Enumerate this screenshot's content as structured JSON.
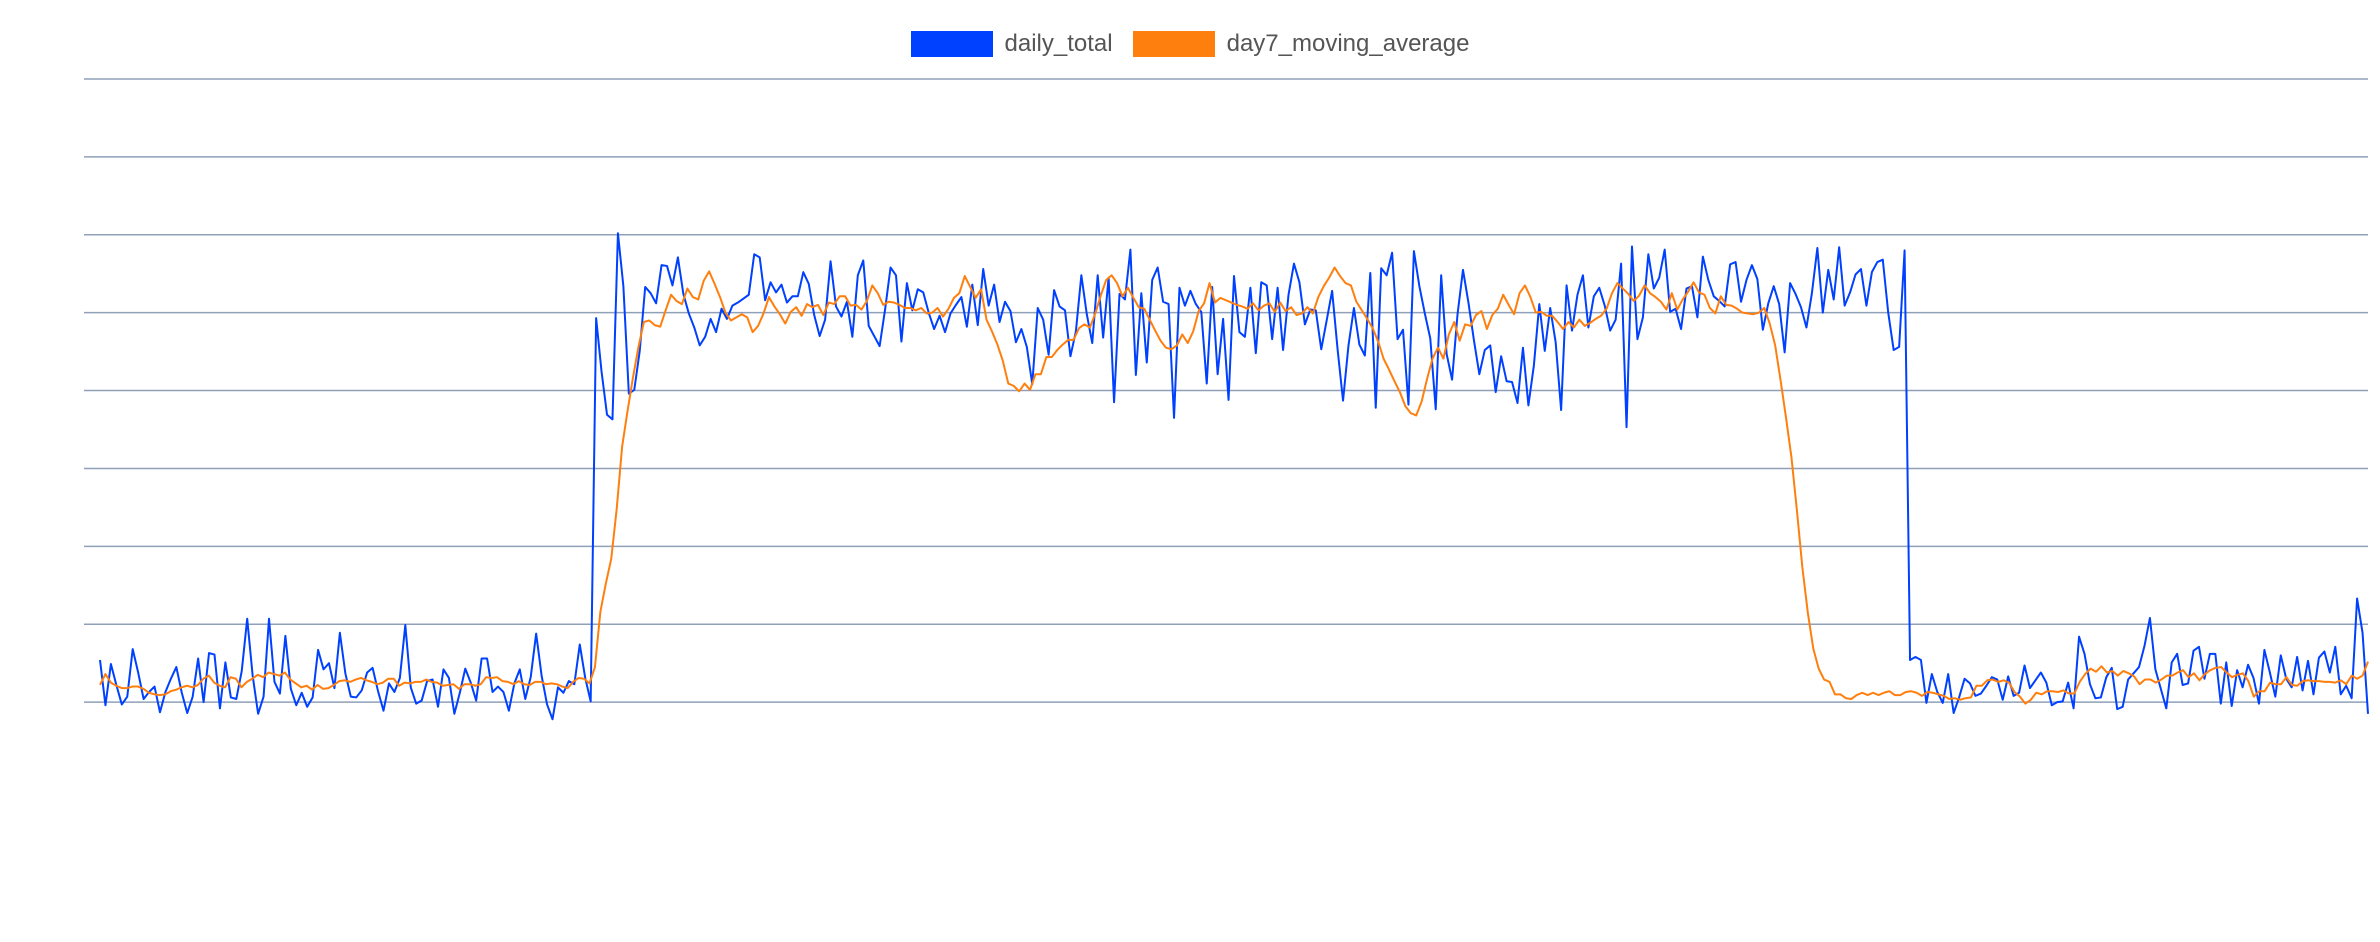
{
  "chart_data": {
    "type": "line",
    "title": "",
    "xlabel": "",
    "ylabel": "",
    "ylim": [
      0,
      9
    ],
    "grid": true,
    "legend_position": "top-center",
    "tick_labels_visible": false,
    "series": [
      {
        "name": "daily_total",
        "color": "#0040ff",
        "values": [
          1.54,
          0.96,
          1.49,
          1.22,
          0.97,
          1.07,
          1.68,
          1.38,
          1.04,
          1.13,
          1.2,
          0.87,
          1.13,
          1.3,
          1.45,
          1.12,
          0.86,
          1.07,
          1.56,
          1.0,
          1.63,
          1.61,
          0.92,
          1.51,
          1.06,
          1.04,
          1.4,
          2.07,
          1.34,
          0.85,
          1.07,
          2.07,
          1.26,
          1.11,
          1.85,
          1.17,
          0.96,
          1.12,
          0.94,
          1.06,
          1.67,
          1.42,
          1.5,
          1.18,
          1.89,
          1.37,
          1.07,
          1.06,
          1.15,
          1.38,
          1.44,
          1.14,
          0.89,
          1.24,
          1.13,
          1.31,
          1.99,
          1.19,
          0.98,
          1.02,
          1.27,
          1.29,
          0.94,
          1.42,
          1.31,
          0.85,
          1.12,
          1.43,
          1.25,
          1.02,
          1.56,
          1.56,
          1.13,
          1.2,
          1.13,
          0.89,
          1.24,
          1.42,
          1.04,
          1.32,
          1.88,
          1.34,
          0.97,
          0.78,
          1.19,
          1.12,
          1.27,
          1.23,
          1.74,
          1.31,
          1.01,
          5.93,
          5.24,
          4.69,
          4.63,
          7.02,
          6.34,
          4.96,
          5.01,
          5.51,
          6.33,
          6.25,
          6.12,
          6.61,
          6.6,
          6.35,
          6.71,
          6.24,
          5.99,
          5.81,
          5.58,
          5.69,
          5.92,
          5.75,
          6.05,
          5.92,
          6.09,
          6.13,
          6.18,
          6.23,
          6.75,
          6.71,
          6.16,
          6.39,
          6.26,
          6.36,
          6.13,
          6.21,
          6.21,
          6.52,
          6.37,
          5.97,
          5.7,
          5.91,
          6.66,
          6.08,
          5.95,
          6.14,
          5.69,
          6.48,
          6.67,
          5.83,
          5.7,
          5.57,
          6.04,
          6.58,
          6.48,
          5.63,
          6.38,
          6.03,
          6.3,
          6.26,
          6.0,
          5.79,
          5.96,
          5.75,
          5.99,
          6.1,
          6.2,
          5.82,
          6.36,
          5.84,
          6.56,
          6.09,
          6.36,
          5.88,
          6.14,
          6.02,
          5.62,
          5.79,
          5.56,
          5.08,
          6.06,
          5.91,
          5.46,
          6.29,
          6.08,
          6.03,
          5.44,
          5.76,
          6.48,
          5.98,
          5.61,
          6.48,
          5.68,
          6.45,
          4.85,
          6.24,
          6.17,
          6.81,
          5.2,
          6.25,
          5.36,
          6.42,
          6.58,
          6.14,
          6.11,
          4.65,
          6.32,
          6.09,
          6.28,
          6.11,
          6.01,
          5.09,
          6.33,
          5.21,
          5.92,
          4.88,
          6.47,
          5.75,
          5.69,
          6.32,
          5.48,
          6.39,
          6.35,
          5.66,
          6.32,
          5.52,
          6.23,
          6.63,
          6.39,
          5.85,
          6.04,
          6.03,
          5.53,
          5.9,
          6.28,
          5.53,
          4.87,
          5.58,
          6.06,
          5.59,
          5.45,
          6.51,
          4.78,
          6.57,
          6.48,
          6.77,
          5.66,
          5.78,
          4.82,
          6.79,
          6.34,
          5.99,
          5.67,
          4.76,
          6.48,
          5.47,
          5.14,
          5.98,
          6.55,
          6.13,
          5.65,
          5.21,
          5.52,
          5.58,
          4.98,
          5.44,
          5.12,
          5.11,
          4.84,
          5.55,
          4.81,
          5.32,
          6.11,
          5.51,
          6.06,
          5.62,
          4.75,
          6.35,
          5.77,
          6.23,
          6.48,
          5.81,
          6.21,
          6.32,
          6.09,
          5.77,
          5.91,
          6.63,
          4.53,
          6.85,
          5.66,
          5.94,
          6.75,
          6.31,
          6.45,
          6.81,
          6.01,
          6.05,
          5.79,
          6.31,
          6.34,
          5.94,
          6.72,
          6.42,
          6.21,
          6.15,
          6.08,
          6.62,
          6.65,
          6.14,
          6.42,
          6.61,
          6.43,
          5.78,
          6.12,
          6.34,
          6.11,
          5.49,
          6.38,
          6.24,
          6.07,
          5.81,
          6.25,
          6.83,
          6.0,
          6.55,
          6.17,
          6.84,
          6.09,
          6.26,
          6.49,
          6.56,
          6.09,
          6.52,
          6.65,
          6.68,
          6.0,
          5.52,
          5.56,
          6.8,
          1.54,
          1.58,
          1.54,
          0.99,
          1.36,
          1.13,
          0.99,
          1.36,
          0.86,
          1.06,
          1.3,
          1.24,
          1.08,
          1.11,
          1.21,
          1.32,
          1.29,
          1.03,
          1.33,
          1.08,
          1.12,
          1.47,
          1.18,
          1.28,
          1.38,
          1.25,
          0.96,
          1.0,
          1.01,
          1.25,
          0.92,
          1.84,
          1.62,
          1.23,
          1.05,
          1.06,
          1.32,
          1.44,
          0.91,
          0.94,
          1.29,
          1.37,
          1.45,
          1.72,
          2.08,
          1.42,
          1.17,
          0.92,
          1.51,
          1.62,
          1.22,
          1.24,
          1.66,
          1.71,
          1.3,
          1.62,
          1.62,
          0.98,
          1.51,
          0.95,
          1.41,
          1.19,
          1.48,
          1.31,
          0.98,
          1.67,
          1.38,
          1.07,
          1.6,
          1.3,
          1.19,
          1.58,
          1.15,
          1.53,
          1.1,
          1.57,
          1.65,
          1.38,
          1.71,
          1.1,
          1.21,
          1.05,
          2.33,
          1.89,
          0.85
        ]
      },
      {
        "name": "day7_moving_average",
        "color": "#ff7f0e",
        "values": [
          1.22,
          1.36,
          1.25,
          1.21,
          1.18,
          1.18,
          1.2,
          1.2,
          1.17,
          1.12,
          1.1,
          1.09,
          1.1,
          1.14,
          1.16,
          1.19,
          1.21,
          1.19,
          1.22,
          1.3,
          1.34,
          1.25,
          1.21,
          1.19,
          1.32,
          1.3,
          1.19,
          1.26,
          1.3,
          1.35,
          1.32,
          1.38,
          1.36,
          1.34,
          1.38,
          1.29,
          1.24,
          1.19,
          1.21,
          1.16,
          1.22,
          1.17,
          1.18,
          1.22,
          1.27,
          1.28,
          1.26,
          1.29,
          1.31,
          1.28,
          1.26,
          1.23,
          1.25,
          1.3,
          1.3,
          1.21,
          1.25,
          1.24,
          1.26,
          1.26,
          1.29,
          1.26,
          1.25,
          1.21,
          1.22,
          1.23,
          1.17,
          1.23,
          1.23,
          1.21,
          1.23,
          1.32,
          1.31,
          1.32,
          1.27,
          1.26,
          1.23,
          1.27,
          1.23,
          1.22,
          1.26,
          1.26,
          1.23,
          1.24,
          1.23,
          1.2,
          1.18,
          1.26,
          1.31,
          1.3,
          1.24,
          1.45,
          2.16,
          2.52,
          2.84,
          3.48,
          4.28,
          4.74,
          5.17,
          5.56,
          5.88,
          5.9,
          5.84,
          5.82,
          6.03,
          6.23,
          6.15,
          6.11,
          6.31,
          6.2,
          6.17,
          6.41,
          6.53,
          6.37,
          6.2,
          6.0,
          5.9,
          5.94,
          5.98,
          5.94,
          5.75,
          5.83,
          5.99,
          6.2,
          6.08,
          5.98,
          5.86,
          6.01,
          6.07,
          5.96,
          6.11,
          6.07,
          6.1,
          5.97,
          6.13,
          6.11,
          6.21,
          6.21,
          6.09,
          6.1,
          6.04,
          6.15,
          6.35,
          6.25,
          6.1,
          6.14,
          6.13,
          6.1,
          6.06,
          6.06,
          6.03,
          6.06,
          5.99,
          6.0,
          6.06,
          5.95,
          6.05,
          6.19,
          6.25,
          6.47,
          6.33,
          6.19,
          6.3,
          5.91,
          5.76,
          5.59,
          5.38,
          5.09,
          5.06,
          4.99,
          5.09,
          5.01,
          5.21,
          5.21,
          5.43,
          5.43,
          5.52,
          5.59,
          5.65,
          5.65,
          5.8,
          5.85,
          5.81,
          5.99,
          6.22,
          6.42,
          6.48,
          6.38,
          6.21,
          6.32,
          6.19,
          6.07,
          6.05,
          5.91,
          5.77,
          5.64,
          5.55,
          5.53,
          5.58,
          5.72,
          5.61,
          5.76,
          6.02,
          6.12,
          6.38,
          6.13,
          6.19,
          6.16,
          6.13,
          6.1,
          6.08,
          6.05,
          6.12,
          6.03,
          6.09,
          6.12,
          6.01,
          6.13,
          6.02,
          6.07,
          5.97,
          5.99,
          6.07,
          5.99,
          6.2,
          6.34,
          6.45,
          6.58,
          6.47,
          6.38,
          6.35,
          6.14,
          6.03,
          5.92,
          5.8,
          5.63,
          5.41,
          5.27,
          5.12,
          4.98,
          4.8,
          4.71,
          4.68,
          4.86,
          5.15,
          5.41,
          5.55,
          5.41,
          5.72,
          5.88,
          5.64,
          5.85,
          5.83,
          5.97,
          6.02,
          5.79,
          5.97,
          6.05,
          6.23,
          6.1,
          5.98,
          6.25,
          6.35,
          6.2,
          6.0,
          6.01,
          5.96,
          5.96,
          5.88,
          5.79,
          5.88,
          5.81,
          5.91,
          5.83,
          5.87,
          5.92,
          5.96,
          6.05,
          6.25,
          6.38,
          6.31,
          6.24,
          6.15,
          6.22,
          6.35,
          6.25,
          6.2,
          6.14,
          6.04,
          6.25,
          6.04,
          6.17,
          6.27,
          6.39,
          6.26,
          6.23,
          6.06,
          5.99,
          6.21,
          6.1,
          6.09,
          6.05,
          6.0,
          5.99,
          5.98,
          6.0,
          6.06,
          5.86,
          5.58,
          5.13,
          4.65,
          4.14,
          3.46,
          2.73,
          2.15,
          1.69,
          1.43,
          1.29,
          1.26,
          1.1,
          1.1,
          1.05,
          1.04,
          1.09,
          1.12,
          1.09,
          1.12,
          1.09,
          1.12,
          1.14,
          1.09,
          1.09,
          1.13,
          1.14,
          1.12,
          1.08,
          1.13,
          1.12,
          1.1,
          1.08,
          1.04,
          1.05,
          1.03,
          1.05,
          1.06,
          1.21,
          1.21,
          1.28,
          1.29,
          1.26,
          1.28,
          1.25,
          1.13,
          1.07,
          0.98,
          1.03,
          1.12,
          1.1,
          1.14,
          1.14,
          1.13,
          1.15,
          1.11,
          1.11,
          1.26,
          1.36,
          1.43,
          1.39,
          1.46,
          1.38,
          1.4,
          1.34,
          1.4,
          1.37,
          1.33,
          1.23,
          1.29,
          1.29,
          1.25,
          1.29,
          1.34,
          1.34,
          1.38,
          1.41,
          1.32,
          1.37,
          1.28,
          1.36,
          1.41,
          1.44,
          1.45,
          1.38,
          1.32,
          1.35,
          1.37,
          1.27,
          1.07,
          1.14,
          1.14,
          1.25,
          1.23,
          1.23,
          1.32,
          1.22,
          1.21,
          1.27,
          1.28,
          1.27,
          1.27,
          1.26,
          1.26,
          1.25,
          1.28,
          1.23,
          1.34,
          1.3,
          1.34,
          1.52
        ]
      }
    ]
  }
}
